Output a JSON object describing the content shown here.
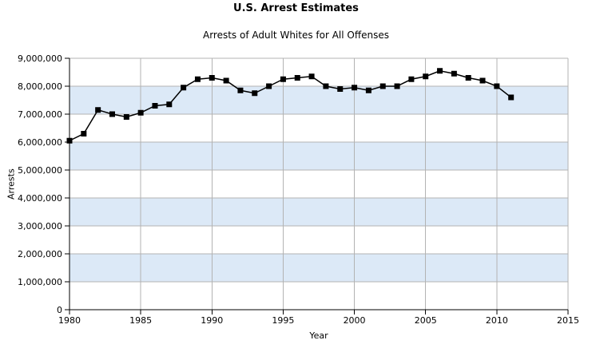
{
  "chart_data": {
    "type": "line",
    "title": "U.S. Arrest Estimates",
    "subtitle": "Arrests of Adult Whites for All Offenses",
    "xlabel": "Year",
    "ylabel": "Arrests",
    "xlim": [
      1980,
      2015
    ],
    "ylim": [
      0,
      9000000
    ],
    "grid": true,
    "legend_position": "none",
    "x_ticks": [
      1980,
      1985,
      1990,
      1995,
      2000,
      2005,
      2010,
      2015
    ],
    "x_tick_labels": [
      "1980",
      "1985",
      "1990",
      "1995",
      "2000",
      "2005",
      "2010",
      "2015"
    ],
    "y_ticks": [
      0,
      1000000,
      2000000,
      3000000,
      4000000,
      5000000,
      6000000,
      7000000,
      8000000,
      9000000
    ],
    "y_tick_labels": [
      "0",
      "1,000,000",
      "2,000,000",
      "3,000,000",
      "4,000,000",
      "5,000,000",
      "6,000,000",
      "7,000,000",
      "8,000,000",
      "9,000,000"
    ],
    "shaded_bands": [
      [
        1000000,
        2000000
      ],
      [
        3000000,
        4000000
      ],
      [
        5000000,
        6000000
      ],
      [
        7000000,
        8000000
      ]
    ],
    "colors": {
      "background": "#ffffff",
      "plot_band": "#dce9f7",
      "gridline": "#b3b3b3",
      "axis": "#000000",
      "series_line": "#000000",
      "marker": "#000000",
      "text": "#000000"
    },
    "series": [
      {
        "name": "Arrests of Adult Whites for All Offenses",
        "marker": "square",
        "x": [
          1980,
          1981,
          1982,
          1983,
          1984,
          1985,
          1986,
          1987,
          1988,
          1989,
          1990,
          1991,
          1992,
          1993,
          1994,
          1995,
          1996,
          1997,
          1998,
          1999,
          2000,
          2001,
          2002,
          2003,
          2004,
          2005,
          2006,
          2007,
          2008,
          2009,
          2010,
          2011
        ],
        "y": [
          6050000,
          6300000,
          7150000,
          7000000,
          6900000,
          7050000,
          7300000,
          7350000,
          7950000,
          8250000,
          8300000,
          8200000,
          7850000,
          7750000,
          8000000,
          8250000,
          8300000,
          8350000,
          8000000,
          7900000,
          7950000,
          7850000,
          8000000,
          8000000,
          8250000,
          8350000,
          8550000,
          8450000,
          8300000,
          8200000,
          8000000,
          7600000
        ]
      }
    ]
  }
}
